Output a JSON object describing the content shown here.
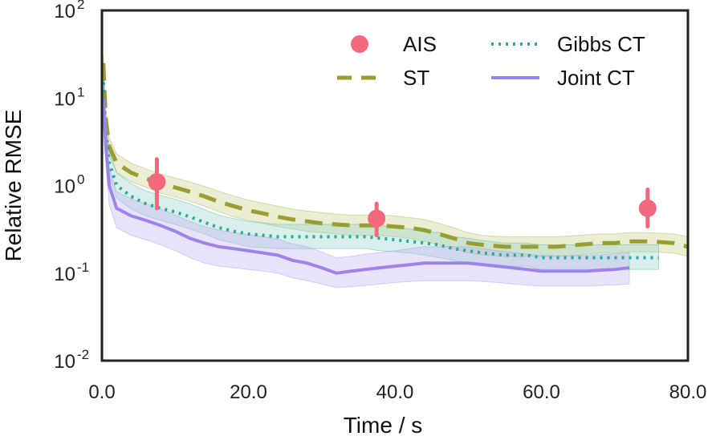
{
  "chart_data": {
    "type": "line",
    "title": "",
    "xlabel": "Time / s",
    "ylabel": "Relative RMSE",
    "xlim": [
      0,
      80
    ],
    "ylim": [
      0.01,
      100
    ],
    "yscale": "log",
    "x_ticks": [
      0,
      20,
      40,
      60,
      80
    ],
    "x_tick_labels": [
      "0.0",
      "20.0",
      "40.0",
      "60.0",
      "80.0"
    ],
    "y_ticks": [
      {
        "value": 100,
        "base": "10",
        "exp": "2"
      },
      {
        "value": 10,
        "base": "10",
        "exp": "1"
      },
      {
        "value": 1,
        "base": "10",
        "exp": "0"
      },
      {
        "value": 0.1,
        "base": "10",
        "exp": "-1"
      },
      {
        "value": 0.01,
        "base": "10",
        "exp": "-2"
      }
    ],
    "legend_position": "top-right",
    "series": [
      {
        "name": "ST",
        "style": "dashed",
        "color": "#9a9e32",
        "band_color": "#c9cf84",
        "x": [
          0.2,
          0.5,
          1,
          2,
          4,
          6,
          8,
          10,
          12,
          14,
          16,
          18,
          20,
          22,
          24,
          26,
          28,
          30,
          32,
          34,
          36,
          38,
          40,
          42,
          44,
          46,
          48,
          50,
          52,
          55,
          58,
          60,
          62,
          65,
          68,
          70,
          72,
          75,
          78,
          80
        ],
        "y": [
          25,
          6,
          2.8,
          1.8,
          1.4,
          1.2,
          1.05,
          0.95,
          0.85,
          0.75,
          0.65,
          0.58,
          0.52,
          0.48,
          0.44,
          0.41,
          0.39,
          0.37,
          0.36,
          0.35,
          0.35,
          0.35,
          0.34,
          0.33,
          0.31,
          0.28,
          0.25,
          0.22,
          0.21,
          0.2,
          0.2,
          0.2,
          0.2,
          0.21,
          0.22,
          0.22,
          0.23,
          0.23,
          0.22,
          0.2
        ],
        "lower": [
          20,
          4.8,
          2.2,
          1.4,
          1.1,
          0.95,
          0.82,
          0.74,
          0.66,
          0.58,
          0.5,
          0.44,
          0.4,
          0.37,
          0.34,
          0.32,
          0.3,
          0.29,
          0.28,
          0.27,
          0.27,
          0.27,
          0.26,
          0.25,
          0.23,
          0.21,
          0.19,
          0.17,
          0.16,
          0.155,
          0.155,
          0.155,
          0.155,
          0.16,
          0.17,
          0.17,
          0.175,
          0.175,
          0.17,
          0.155
        ],
        "upper": [
          31,
          7.4,
          3.5,
          2.3,
          1.8,
          1.55,
          1.35,
          1.22,
          1.1,
          0.98,
          0.86,
          0.76,
          0.68,
          0.63,
          0.58,
          0.54,
          0.51,
          0.49,
          0.47,
          0.46,
          0.46,
          0.46,
          0.45,
          0.43,
          0.41,
          0.37,
          0.33,
          0.29,
          0.27,
          0.26,
          0.26,
          0.26,
          0.26,
          0.27,
          0.28,
          0.28,
          0.29,
          0.29,
          0.28,
          0.26
        ]
      },
      {
        "name": "Gibbs CT",
        "style": "dotted",
        "color": "#2aa89a",
        "band_color": "#8fd0c5",
        "x": [
          0.2,
          0.5,
          1,
          2,
          4,
          6,
          8,
          10,
          12,
          14,
          16,
          18,
          20,
          22,
          24,
          26,
          28,
          30,
          32,
          34,
          36,
          38,
          40,
          42,
          44,
          46,
          48,
          50,
          52,
          55,
          58,
          60,
          62,
          65,
          68,
          70,
          72,
          74,
          76
        ],
        "y": [
          15,
          4.5,
          1.8,
          1.0,
          0.75,
          0.62,
          0.55,
          0.5,
          0.44,
          0.38,
          0.33,
          0.3,
          0.28,
          0.27,
          0.26,
          0.26,
          0.26,
          0.26,
          0.26,
          0.26,
          0.26,
          0.25,
          0.24,
          0.23,
          0.22,
          0.21,
          0.19,
          0.18,
          0.17,
          0.16,
          0.16,
          0.15,
          0.15,
          0.15,
          0.15,
          0.15,
          0.15,
          0.15,
          0.15
        ],
        "lower": [
          10,
          3.2,
          1.3,
          0.72,
          0.54,
          0.45,
          0.4,
          0.36,
          0.32,
          0.28,
          0.24,
          0.22,
          0.2,
          0.195,
          0.19,
          0.19,
          0.19,
          0.19,
          0.19,
          0.19,
          0.19,
          0.18,
          0.175,
          0.17,
          0.16,
          0.15,
          0.14,
          0.13,
          0.125,
          0.12,
          0.12,
          0.11,
          0.11,
          0.11,
          0.11,
          0.11,
          0.11,
          0.11,
          0.11
        ],
        "upper": [
          22,
          6.3,
          2.5,
          1.4,
          1.05,
          0.87,
          0.77,
          0.7,
          0.62,
          0.53,
          0.46,
          0.42,
          0.39,
          0.375,
          0.36,
          0.36,
          0.36,
          0.36,
          0.36,
          0.36,
          0.36,
          0.35,
          0.33,
          0.32,
          0.3,
          0.29,
          0.26,
          0.25,
          0.235,
          0.22,
          0.22,
          0.21,
          0.21,
          0.21,
          0.21,
          0.21,
          0.21,
          0.21,
          0.21
        ]
      },
      {
        "name": "Joint CT",
        "style": "solid",
        "color": "#9b85ea",
        "band_color": "#bfb0f0",
        "x": [
          0.2,
          0.5,
          1,
          2,
          4,
          6,
          8,
          10,
          12,
          14,
          16,
          18,
          20,
          22,
          24,
          26,
          28,
          30,
          32,
          34,
          36,
          38,
          40,
          42,
          44,
          46,
          48,
          50,
          52,
          54,
          56,
          58,
          60,
          62,
          64,
          66,
          68,
          70,
          72
        ],
        "y": [
          10,
          3.0,
          1.0,
          0.55,
          0.45,
          0.4,
          0.35,
          0.3,
          0.25,
          0.22,
          0.2,
          0.19,
          0.18,
          0.17,
          0.16,
          0.14,
          0.13,
          0.115,
          0.1,
          0.105,
          0.11,
          0.115,
          0.12,
          0.125,
          0.13,
          0.13,
          0.13,
          0.13,
          0.125,
          0.12,
          0.115,
          0.11,
          0.105,
          0.105,
          0.105,
          0.105,
          0.108,
          0.11,
          0.115
        ],
        "lower": [
          6,
          1.9,
          0.6,
          0.33,
          0.27,
          0.24,
          0.21,
          0.18,
          0.15,
          0.13,
          0.12,
          0.115,
          0.11,
          0.105,
          0.1,
          0.088,
          0.082,
          0.075,
          0.068,
          0.07,
          0.072,
          0.075,
          0.078,
          0.08,
          0.082,
          0.082,
          0.082,
          0.082,
          0.08,
          0.078,
          0.075,
          0.073,
          0.071,
          0.071,
          0.071,
          0.071,
          0.072,
          0.073,
          0.075
        ],
        "upper": [
          16,
          4.7,
          1.6,
          0.85,
          0.7,
          0.62,
          0.54,
          0.46,
          0.39,
          0.34,
          0.31,
          0.29,
          0.275,
          0.26,
          0.245,
          0.215,
          0.2,
          0.175,
          0.15,
          0.155,
          0.165,
          0.172,
          0.18,
          0.19,
          0.2,
          0.2,
          0.2,
          0.2,
          0.19,
          0.18,
          0.172,
          0.165,
          0.158,
          0.158,
          0.158,
          0.158,
          0.162,
          0.165,
          0.172
        ]
      },
      {
        "name": "AIS",
        "style": "points",
        "color": "#f2687c",
        "x": [
          7.5,
          37.5,
          74.5
        ],
        "y": [
          1.1,
          0.42,
          0.55
        ],
        "err_low": [
          0.55,
          0.27,
          0.34
        ],
        "err_high": [
          2.0,
          0.62,
          0.9
        ]
      }
    ],
    "legend": [
      {
        "name": "AIS",
        "style": "points",
        "color": "#f2687c"
      },
      {
        "name": "Gibbs CT",
        "style": "dotted",
        "color": "#2aa89a"
      },
      {
        "name": "ST",
        "style": "dashed",
        "color": "#9a9e32"
      },
      {
        "name": "Joint CT",
        "style": "solid",
        "color": "#9b85ea"
      }
    ]
  }
}
